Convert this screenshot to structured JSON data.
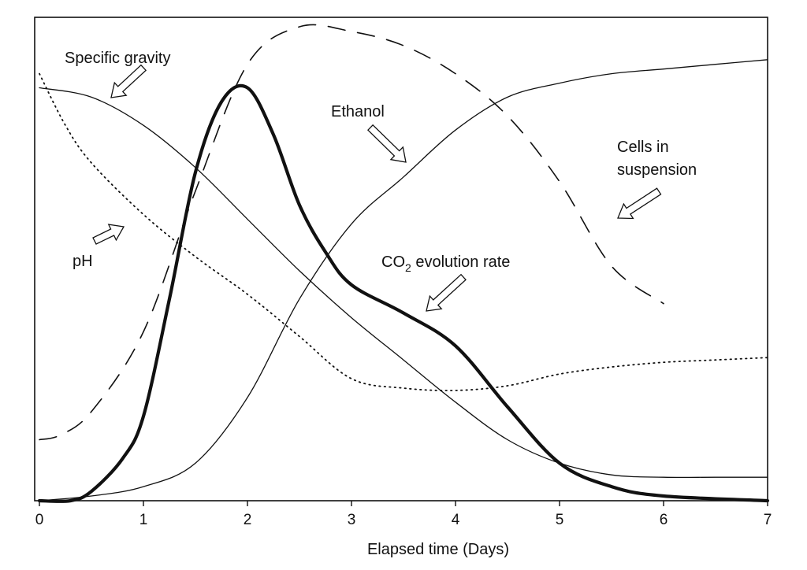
{
  "chart_data": {
    "type": "line",
    "title": "",
    "xlabel": "Elapsed time (Days)",
    "ylabel": "",
    "xlim": [
      0,
      7
    ],
    "ylim": [
      0,
      1
    ],
    "x_ticks": [
      "0",
      "1",
      "2",
      "3",
      "4",
      "5",
      "6",
      "7"
    ],
    "y_ticks": [],
    "grid": false,
    "legend": "none (curves labelled directly with arrow annotations)",
    "annotations": {
      "specific_gravity": "Specific gravity",
      "ethanol": "Ethanol",
      "cells_line1": "Cells in",
      "cells_line2": "suspension",
      "ph": "pH",
      "co2_prefix": "CO",
      "co2_sub": "2",
      "co2_suffix": " evolution rate"
    },
    "series": [
      {
        "name": "Specific gravity",
        "style": "solid-thin",
        "x": [
          0,
          0.5,
          1,
          1.5,
          2,
          2.5,
          3,
          3.5,
          4,
          4.5,
          5,
          5.5,
          6,
          6.5,
          7
        ],
        "y": [
          0.88,
          0.86,
          0.8,
          0.71,
          0.6,
          0.49,
          0.39,
          0.3,
          0.21,
          0.13,
          0.08,
          0.055,
          0.05,
          0.05,
          0.05
        ]
      },
      {
        "name": "pH",
        "style": "dotted",
        "x": [
          0,
          0.25,
          0.5,
          1,
          1.5,
          2,
          2.5,
          3,
          3.5,
          4,
          4.5,
          5,
          5.5,
          6,
          6.5,
          7
        ],
        "y": [
          0.91,
          0.8,
          0.72,
          0.61,
          0.52,
          0.44,
          0.35,
          0.26,
          0.24,
          0.235,
          0.245,
          0.27,
          0.285,
          0.295,
          0.3,
          0.305
        ]
      },
      {
        "name": "Cells in suspension",
        "style": "dashed",
        "x": [
          0,
          0.2,
          0.5,
          1,
          1.5,
          2,
          2.5,
          3,
          3.5,
          4,
          4.5,
          5,
          5.5,
          6
        ],
        "y": [
          0.13,
          0.14,
          0.19,
          0.36,
          0.66,
          0.93,
          1.01,
          1.0,
          0.97,
          0.91,
          0.82,
          0.68,
          0.5,
          0.42
        ]
      },
      {
        "name": "Ethanol",
        "style": "solid-thin",
        "x": [
          0,
          0.5,
          1,
          1.5,
          2,
          2.5,
          3,
          3.5,
          4,
          4.5,
          5,
          5.5,
          6,
          6.5,
          7
        ],
        "y": [
          0.0,
          0.01,
          0.03,
          0.08,
          0.22,
          0.43,
          0.59,
          0.69,
          0.79,
          0.86,
          0.89,
          0.91,
          0.92,
          0.93,
          0.94
        ]
      },
      {
        "name": "CO2 evolution rate",
        "style": "solid-thick",
        "x": [
          0,
          0.3,
          0.5,
          0.8,
          1.0,
          1.25,
          1.5,
          1.75,
          2.0,
          2.25,
          2.5,
          2.75,
          3.0,
          3.5,
          4.0,
          4.5,
          5.0,
          5.5,
          6.0,
          7.0
        ],
        "y": [
          0.0,
          0.0,
          0.02,
          0.09,
          0.18,
          0.43,
          0.7,
          0.85,
          0.88,
          0.78,
          0.63,
          0.53,
          0.46,
          0.4,
          0.33,
          0.2,
          0.08,
          0.03,
          0.01,
          0.0
        ]
      }
    ]
  }
}
